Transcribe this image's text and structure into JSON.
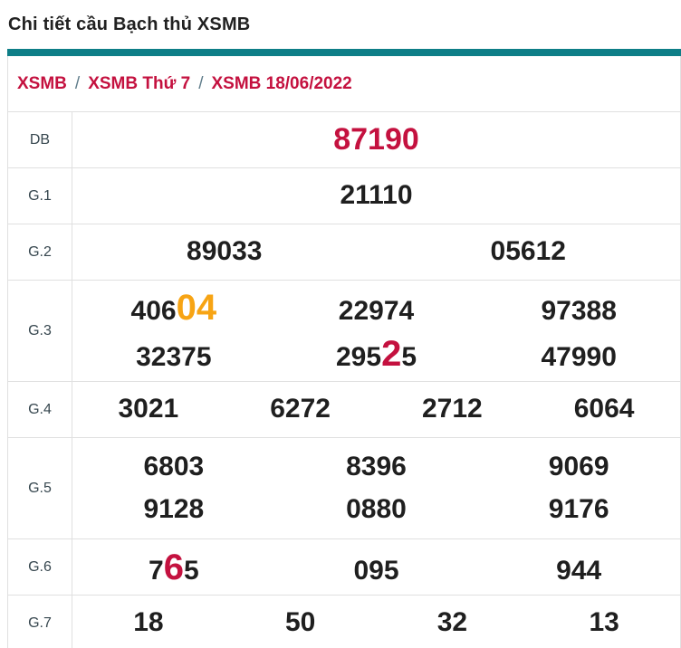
{
  "page": {
    "title": "Chi tiết cầu Bạch thủ XSMB"
  },
  "colors": {
    "teal_bar": "#0e7e87",
    "crimson": "#c4113f",
    "orange": "#f7a414",
    "number": "#1f1f1f",
    "label": "#37474f",
    "border": "#e0e0e0",
    "breadcrumb_separator": "#607d8b"
  },
  "breadcrumb": {
    "separator": "/",
    "items": [
      {
        "label": "XSMB"
      },
      {
        "label": "XSMB Thứ 7"
      },
      {
        "label": "XSMB 18/06/2022"
      }
    ]
  },
  "table": {
    "rows": [
      {
        "label": "DB",
        "lines": [
          [
            {
              "segments": [
                {
                  "text": "87190",
                  "style": "red"
                }
              ]
            }
          ]
        ]
      },
      {
        "label": "G.1",
        "lines": [
          [
            {
              "segments": [
                {
                  "text": "21110",
                  "style": "normal"
                }
              ]
            }
          ]
        ]
      },
      {
        "label": "G.2",
        "lines": [
          [
            {
              "segments": [
                {
                  "text": "89033",
                  "style": "normal"
                }
              ]
            },
            {
              "segments": [
                {
                  "text": "05612",
                  "style": "normal"
                }
              ]
            }
          ]
        ]
      },
      {
        "label": "G.3",
        "lines": [
          [
            {
              "segments": [
                {
                  "text": "406",
                  "style": "normal"
                },
                {
                  "text": "04",
                  "style": "orange-big"
                }
              ]
            },
            {
              "segments": [
                {
                  "text": "22974",
                  "style": "normal"
                }
              ]
            },
            {
              "segments": [
                {
                  "text": "97388",
                  "style": "normal"
                }
              ]
            }
          ],
          [
            {
              "segments": [
                {
                  "text": "32375",
                  "style": "normal"
                }
              ]
            },
            {
              "segments": [
                {
                  "text": "295",
                  "style": "normal"
                },
                {
                  "text": "2",
                  "style": "red-big"
                },
                {
                  "text": "5",
                  "style": "normal"
                }
              ]
            },
            {
              "segments": [
                {
                  "text": "47990",
                  "style": "normal"
                }
              ]
            }
          ]
        ]
      },
      {
        "label": "G.4",
        "lines": [
          [
            {
              "segments": [
                {
                  "text": "3021",
                  "style": "normal"
                }
              ]
            },
            {
              "segments": [
                {
                  "text": "6272",
                  "style": "normal"
                }
              ]
            },
            {
              "segments": [
                {
                  "text": "2712",
                  "style": "normal"
                }
              ]
            },
            {
              "segments": [
                {
                  "text": "6064",
                  "style": "normal"
                }
              ]
            }
          ]
        ]
      },
      {
        "label": "G.5",
        "lines": [
          [
            {
              "segments": [
                {
                  "text": "6803",
                  "style": "normal"
                }
              ]
            },
            {
              "segments": [
                {
                  "text": "8396",
                  "style": "normal"
                }
              ]
            },
            {
              "segments": [
                {
                  "text": "9069",
                  "style": "normal"
                }
              ]
            }
          ],
          [
            {
              "segments": [
                {
                  "text": "9128",
                  "style": "normal"
                }
              ]
            },
            {
              "segments": [
                {
                  "text": "0880",
                  "style": "normal"
                }
              ]
            },
            {
              "segments": [
                {
                  "text": "9176",
                  "style": "normal"
                }
              ]
            }
          ]
        ]
      },
      {
        "label": "G.6",
        "lines": [
          [
            {
              "segments": [
                {
                  "text": "7",
                  "style": "normal"
                },
                {
                  "text": "6",
                  "style": "red-big"
                },
                {
                  "text": "5",
                  "style": "normal"
                }
              ]
            },
            {
              "segments": [
                {
                  "text": "095",
                  "style": "normal"
                }
              ]
            },
            {
              "segments": [
                {
                  "text": "944",
                  "style": "normal"
                }
              ]
            }
          ]
        ]
      },
      {
        "label": "G.7",
        "lines": [
          [
            {
              "segments": [
                {
                  "text": "18",
                  "style": "normal"
                }
              ]
            },
            {
              "segments": [
                {
                  "text": "50",
                  "style": "normal"
                }
              ]
            },
            {
              "segments": [
                {
                  "text": "32",
                  "style": "normal"
                }
              ]
            },
            {
              "segments": [
                {
                  "text": "13",
                  "style": "normal"
                }
              ]
            }
          ]
        ]
      }
    ]
  }
}
